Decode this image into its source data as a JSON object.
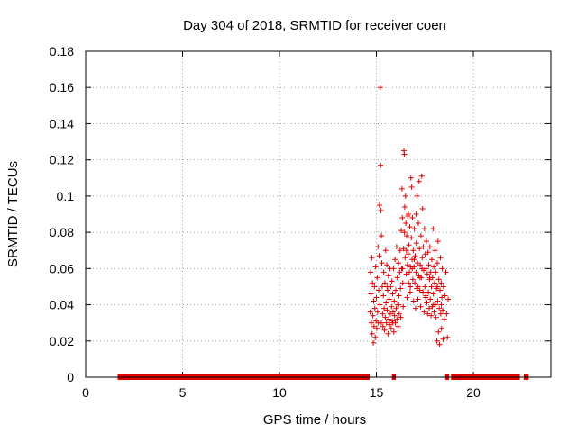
{
  "chart_data": {
    "type": "scatter",
    "title": "Day 304 of 2018, SRMTID for receiver coen",
    "xlabel": "GPS time / hours",
    "ylabel": "SRMTID / TECUs",
    "xlim": [
      0,
      24
    ],
    "ylim": [
      0,
      0.18
    ],
    "grid": true,
    "x_ticks": [
      {
        "value": 0,
        "label": "0"
      },
      {
        "value": 5,
        "label": "5"
      },
      {
        "value": 10,
        "label": "10"
      },
      {
        "value": 15,
        "label": "15"
      },
      {
        "value": 20,
        "label": "20"
      }
    ],
    "y_ticks": [
      {
        "value": 0,
        "label": "0"
      },
      {
        "value": 0.02,
        "label": "0.02"
      },
      {
        "value": 0.04,
        "label": "0.04"
      },
      {
        "value": 0.06,
        "label": "0.06"
      },
      {
        "value": 0.08,
        "label": "0.08"
      },
      {
        "value": 0.1,
        "label": "0.1"
      },
      {
        "value": 0.12,
        "label": "0.12"
      },
      {
        "value": 0.14,
        "label": "0.14"
      },
      {
        "value": 0.16,
        "label": "0.16"
      },
      {
        "value": 0.18,
        "label": "0.18"
      }
    ],
    "series": [
      {
        "name": "SRMTID",
        "color": "#e00000",
        "marker": "plus",
        "zero_segments": [
          [
            1.65,
            14.65
          ],
          [
            15.8,
            16.0
          ],
          [
            18.55,
            18.75
          ],
          [
            18.85,
            22.4
          ],
          [
            22.6,
            22.85
          ]
        ],
        "points": [
          [
            14.68,
            0.036
          ],
          [
            14.7,
            0.058
          ],
          [
            14.72,
            0.046
          ],
          [
            14.74,
            0.03
          ],
          [
            14.76,
            0.066
          ],
          [
            14.78,
            0.024
          ],
          [
            14.8,
            0.052
          ],
          [
            14.82,
            0.034
          ],
          [
            14.84,
            0.019
          ],
          [
            14.86,
            0.042
          ],
          [
            14.88,
            0.028
          ],
          [
            14.9,
            0.05
          ],
          [
            14.92,
            0.038
          ],
          [
            14.94,
            0.022
          ],
          [
            14.96,
            0.061
          ],
          [
            14.98,
            0.031
          ],
          [
            15.0,
            0.044
          ],
          [
            15.02,
            0.027
          ],
          [
            15.04,
            0.055
          ],
          [
            15.06,
            0.036
          ],
          [
            15.08,
            0.072
          ],
          [
            15.1,
            0.03
          ],
          [
            15.12,
            0.048
          ],
          [
            15.14,
            0.067
          ],
          [
            15.16,
            0.095
          ],
          [
            15.18,
            0.04
          ],
          [
            15.2,
            0.16
          ],
          [
            15.22,
            0.117
          ],
          [
            15.24,
            0.092
          ],
          [
            15.26,
            0.078
          ],
          [
            15.28,
            0.063
          ],
          [
            15.3,
            0.05
          ],
          [
            15.32,
            0.035
          ],
          [
            15.34,
            0.028
          ],
          [
            15.36,
            0.045
          ],
          [
            15.38,
            0.058
          ],
          [
            15.4,
            0.038
          ],
          [
            15.42,
            0.026
          ],
          [
            15.44,
            0.052
          ],
          [
            15.46,
            0.033
          ],
          [
            15.48,
            0.07
          ],
          [
            15.5,
            0.041
          ],
          [
            15.52,
            0.03
          ],
          [
            15.54,
            0.062
          ],
          [
            15.56,
            0.037
          ],
          [
            15.58,
            0.048
          ],
          [
            15.6,
            0.024
          ],
          [
            15.62,
            0.056
          ],
          [
            15.64,
            0.032
          ],
          [
            15.66,
            0.043
          ],
          [
            15.68,
            0.029
          ],
          [
            15.7,
            0.06
          ],
          [
            15.72,
            0.035
          ],
          [
            15.74,
            0.05
          ],
          [
            15.76,
            0.027
          ],
          [
            15.78,
            0.039
          ],
          [
            15.8,
            0.053
          ],
          [
            15.82,
            0.031
          ],
          [
            15.84,
            0.046
          ],
          [
            15.86,
            0.036
          ],
          [
            15.88,
            0.06
          ],
          [
            15.9,
            0.025
          ],
          [
            15.92,
            0.042
          ],
          [
            15.94,
            0.034
          ],
          [
            15.96,
            0.065
          ],
          [
            15.98,
            0.03
          ],
          [
            16.0,
            0.048
          ],
          [
            16.02,
            0.038
          ],
          [
            16.04,
            0.072
          ],
          [
            16.06,
            0.032
          ],
          [
            16.08,
            0.055
          ],
          [
            16.1,
            0.04
          ],
          [
            16.12,
            0.028
          ],
          [
            16.14,
            0.063
          ],
          [
            16.16,
            0.045
          ],
          [
            16.18,
            0.035
          ],
          [
            16.2,
            0.058
          ],
          [
            16.22,
            0.07
          ],
          [
            16.24,
            0.049
          ],
          [
            16.26,
            0.033
          ],
          [
            16.28,
            0.081
          ],
          [
            16.3,
            0.06
          ],
          [
            16.32,
            0.104
          ],
          [
            16.34,
            0.088
          ],
          [
            16.36,
            0.052
          ],
          [
            16.38,
            0.039
          ],
          [
            16.4,
            0.071
          ],
          [
            16.42,
            0.125
          ],
          [
            16.44,
            0.123
          ],
          [
            16.46,
            0.094
          ],
          [
            16.48,
            0.066
          ],
          [
            16.5,
            0.1
          ],
          [
            16.52,
            0.085
          ],
          [
            16.54,
            0.057
          ],
          [
            16.56,
            0.078
          ],
          [
            16.58,
            0.044
          ],
          [
            16.6,
            0.062
          ],
          [
            16.62,
            0.089
          ],
          [
            16.64,
            0.068
          ],
          [
            16.66,
            0.052
          ],
          [
            16.68,
            0.073
          ],
          [
            16.7,
            0.058
          ],
          [
            16.72,
            0.083
          ],
          [
            16.74,
            0.047
          ],
          [
            16.76,
            0.061
          ],
          [
            16.78,
            0.11
          ],
          [
            16.8,
            0.077
          ],
          [
            16.82,
            0.105
          ],
          [
            16.84,
            0.065
          ],
          [
            16.86,
            0.088
          ],
          [
            16.88,
            0.054
          ],
          [
            16.9,
            0.07
          ],
          [
            16.92,
            0.042
          ],
          [
            16.94,
            0.061
          ],
          [
            16.96,
            0.082
          ],
          [
            16.98,
            0.052
          ],
          [
            17.0,
            0.067
          ],
          [
            17.02,
            0.038
          ],
          [
            17.04,
            0.058
          ],
          [
            17.06,
            0.074
          ],
          [
            17.08,
            0.049
          ],
          [
            17.1,
            0.1
          ],
          [
            17.12,
            0.063
          ],
          [
            17.14,
            0.043
          ],
          [
            17.16,
            0.085
          ],
          [
            17.18,
            0.056
          ],
          [
            17.2,
            0.108
          ],
          [
            17.22,
            0.071
          ],
          [
            17.24,
            0.048
          ],
          [
            17.26,
            0.062
          ],
          [
            17.28,
            0.039
          ],
          [
            17.3,
            0.078
          ],
          [
            17.32,
            0.055
          ],
          [
            17.34,
            0.111
          ],
          [
            17.36,
            0.066
          ],
          [
            17.38,
            0.093
          ],
          [
            17.4,
            0.047
          ],
          [
            17.42,
            0.072
          ],
          [
            17.44,
            0.059
          ],
          [
            17.46,
            0.036
          ],
          [
            17.48,
            0.082
          ],
          [
            17.5,
            0.05
          ],
          [
            17.52,
            0.068
          ],
          [
            17.54,
            0.044
          ],
          [
            17.56,
            0.06
          ],
          [
            17.58,
            0.075
          ],
          [
            17.6,
            0.041
          ],
          [
            17.62,
            0.057
          ],
          [
            17.64,
            0.035
          ],
          [
            17.66,
            0.069
          ],
          [
            17.68,
            0.047
          ],
          [
            17.7,
            0.062
          ],
          [
            17.72,
            0.038
          ],
          [
            17.74,
            0.054
          ],
          [
            17.76,
            0.072
          ],
          [
            17.78,
            0.043
          ],
          [
            17.8,
            0.058
          ],
          [
            17.82,
            0.034
          ],
          [
            17.84,
            0.05
          ],
          [
            17.86,
            0.065
          ],
          [
            17.88,
            0.039
          ],
          [
            17.9,
            0.055
          ],
          [
            17.92,
            0.082
          ],
          [
            17.94,
            0.046
          ],
          [
            17.96,
            0.061
          ],
          [
            17.98,
            0.036
          ],
          [
            18.0,
            0.052
          ],
          [
            18.02,
            0.07
          ],
          [
            18.04,
            0.04
          ],
          [
            18.06,
            0.058
          ],
          [
            18.08,
            0.033
          ],
          [
            18.1,
            0.049
          ],
          [
            18.12,
            0.02
          ],
          [
            18.14,
            0.063
          ],
          [
            18.16,
            0.042
          ],
          [
            18.18,
            0.075
          ],
          [
            18.2,
            0.025
          ],
          [
            18.22,
            0.054
          ],
          [
            18.24,
            0.038
          ],
          [
            18.26,
            0.018
          ],
          [
            18.28,
            0.048
          ],
          [
            18.3,
            0.066
          ],
          [
            18.32,
            0.035
          ],
          [
            18.34,
            0.052
          ],
          [
            18.36,
            0.027
          ],
          [
            18.38,
            0.044
          ],
          [
            18.4,
            0.06
          ],
          [
            18.42,
            0.037
          ],
          [
            18.44,
            0.021
          ],
          [
            18.46,
            0.05
          ],
          [
            18.5,
            0.032
          ],
          [
            18.54,
            0.045
          ],
          [
            18.58,
            0.058
          ],
          [
            18.62,
            0.035
          ],
          [
            18.66,
            0.022
          ],
          [
            18.7,
            0.043
          ],
          [
            15.25,
            0.03
          ],
          [
            15.55,
            0.05
          ],
          [
            15.85,
            0.03
          ],
          [
            16.15,
            0.04
          ],
          [
            16.35,
            0.06
          ],
          [
            16.55,
            0.07
          ],
          [
            16.75,
            0.05
          ],
          [
            16.95,
            0.065
          ],
          [
            17.15,
            0.05
          ],
          [
            17.35,
            0.06
          ],
          [
            17.55,
            0.045
          ],
          [
            17.75,
            0.055
          ],
          [
            17.95,
            0.04
          ],
          [
            18.15,
            0.05
          ],
          [
            18.35,
            0.04
          ],
          [
            16.45,
            0.08
          ],
          [
            16.65,
            0.09
          ],
          [
            16.85,
            0.06
          ],
          [
            17.05,
            0.09
          ],
          [
            17.25,
            0.055
          ]
        ]
      }
    ]
  }
}
